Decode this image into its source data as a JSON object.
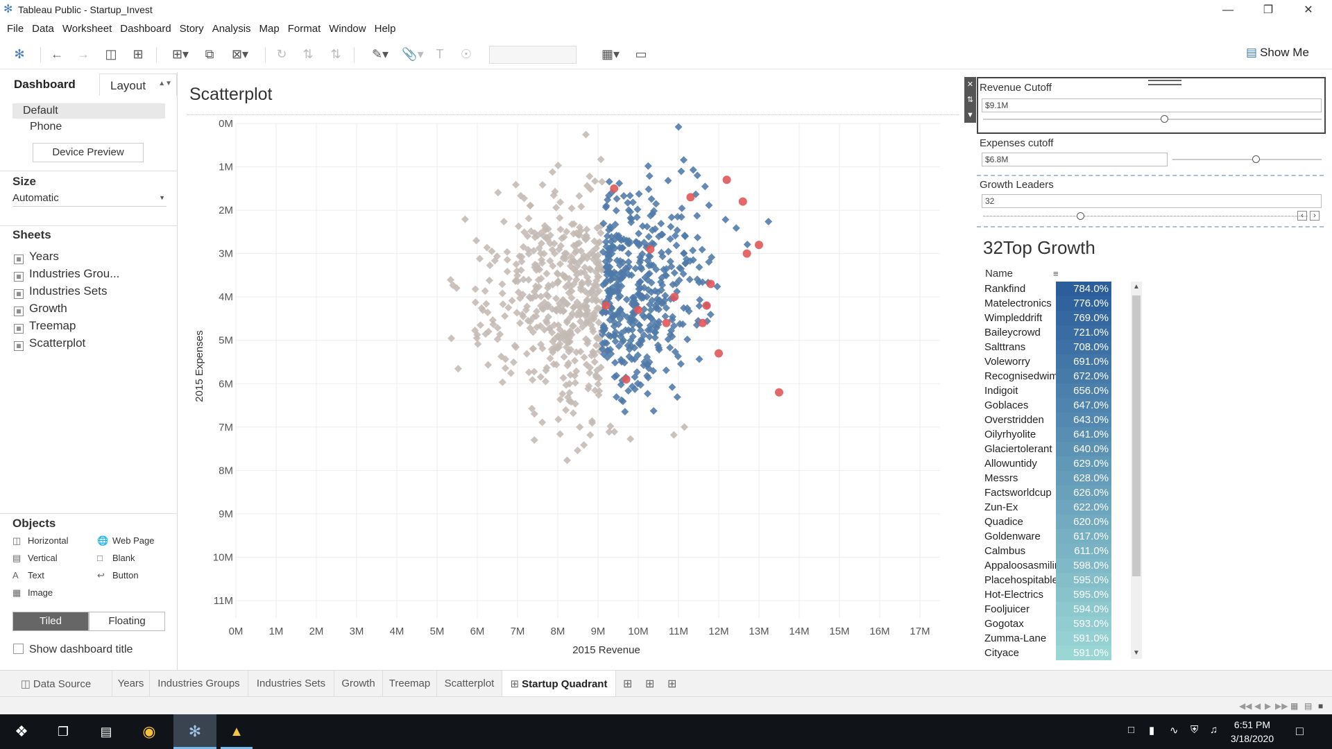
{
  "window": {
    "title": "Tableau Public - Startup_Invest"
  },
  "menu": [
    "File",
    "Data",
    "Worksheet",
    "Dashboard",
    "Story",
    "Analysis",
    "Map",
    "Format",
    "Window",
    "Help"
  ],
  "toolbar": {
    "show_me": "Show Me"
  },
  "left_panel": {
    "tab_dashboard": "Dashboard",
    "tab_layout": "Layout",
    "device_default": "Default",
    "device_phone": "Phone",
    "device_preview": "Device Preview",
    "size_heading": "Size",
    "size_value": "Automatic",
    "sheets_heading": "Sheets",
    "sheets": [
      "Years",
      "Industries Grou...",
      "Industries Sets",
      "Growth",
      "Treemap",
      "Scatterplot"
    ],
    "objects_heading": "Objects",
    "objects": [
      "Horizontal",
      "Web Page",
      "Vertical",
      "Blank",
      "Text",
      "Button",
      "Image"
    ],
    "tiled": "Tiled",
    "floating": "Floating",
    "show_title": "Show dashboard title"
  },
  "scatter": {
    "title": "Scatterplot"
  },
  "chart_data": {
    "type": "scatter",
    "xlabel": "2015 Revenue",
    "ylabel": "2015 Expenses",
    "xlim": [
      0,
      17.5
    ],
    "ylim": [
      0,
      11.4
    ],
    "y_reversed": true,
    "x_ticks": [
      "0M",
      "1M",
      "2M",
      "3M",
      "4M",
      "5M",
      "6M",
      "7M",
      "8M",
      "9M",
      "10M",
      "11M",
      "12M",
      "13M",
      "14M",
      "15M",
      "16M",
      "17M"
    ],
    "y_ticks": [
      "0M",
      "1M",
      "2M",
      "3M",
      "4M",
      "5M",
      "6M",
      "7M",
      "8M",
      "9M",
      "10M",
      "11M"
    ],
    "revenue_cutoff": 9.1,
    "expense_cutoff": 6.8,
    "colors": {
      "below": "#c4bab4",
      "above": "#4e79a7",
      "growth": "#e15759"
    },
    "growth_points": [
      [
        9.4,
        1.5
      ],
      [
        9.2,
        4.2
      ],
      [
        9.7,
        5.9
      ],
      [
        10.0,
        4.3
      ],
      [
        10.3,
        2.9
      ],
      [
        10.7,
        4.6
      ],
      [
        10.9,
        4.0
      ],
      [
        11.3,
        1.7
      ],
      [
        11.7,
        4.2
      ],
      [
        11.8,
        3.7
      ],
      [
        11.6,
        4.6
      ],
      [
        12.0,
        5.3
      ],
      [
        12.2,
        1.3
      ],
      [
        12.6,
        1.8
      ],
      [
        12.7,
        3.0
      ],
      [
        13.0,
        2.8
      ],
      [
        13.5,
        6.2
      ]
    ]
  },
  "filters": {
    "revenue": {
      "label": "Revenue Cutoff",
      "value": "$9.1M"
    },
    "expenses": {
      "label": "Expenses cutoff",
      "value": "$6.8M"
    },
    "leaders": {
      "label": "Growth Leaders",
      "value": "32"
    }
  },
  "growth_table": {
    "title": "32Top Growth",
    "col_name": "Name",
    "rows": [
      {
        "name": "Rankfind",
        "value": "784.0%"
      },
      {
        "name": "Matelectronics",
        "value": "776.0%"
      },
      {
        "name": "Wimpleddrift",
        "value": "769.0%"
      },
      {
        "name": "Baileycrowd",
        "value": "721.0%"
      },
      {
        "name": "Salttrans",
        "value": "708.0%"
      },
      {
        "name": "Voleworry",
        "value": "691.0%"
      },
      {
        "name": "Recognisedwimp",
        "value": "672.0%"
      },
      {
        "name": "Indigoit",
        "value": "656.0%"
      },
      {
        "name": "Goblaces",
        "value": "647.0%"
      },
      {
        "name": "Overstridden",
        "value": "643.0%"
      },
      {
        "name": "Oilyrhyolite",
        "value": "641.0%"
      },
      {
        "name": "Glaciertolerant",
        "value": "640.0%"
      },
      {
        "name": "Allowuntidy",
        "value": "629.0%"
      },
      {
        "name": "Messrs",
        "value": "628.0%"
      },
      {
        "name": "Factsworldcup",
        "value": "626.0%"
      },
      {
        "name": "Zun-Ex",
        "value": "622.0%"
      },
      {
        "name": "Quadice",
        "value": "620.0%"
      },
      {
        "name": "Goldenware",
        "value": "617.0%"
      },
      {
        "name": "Calmbus",
        "value": "611.0%"
      },
      {
        "name": "Appaloosasmiling",
        "value": "598.0%"
      },
      {
        "name": "Placehospitable",
        "value": "595.0%"
      },
      {
        "name": "Hot-Electrics",
        "value": "595.0%"
      },
      {
        "name": "Fooljuicer",
        "value": "594.0%"
      },
      {
        "name": "Gogotax",
        "value": "593.0%"
      },
      {
        "name": "Zumma-Lane",
        "value": "591.0%"
      },
      {
        "name": "Cityace",
        "value": "591.0%"
      }
    ]
  },
  "sheet_tabs": [
    "Data Source",
    "Years",
    "Industries Groups",
    "Industries Sets",
    "Growth",
    "Treemap",
    "Scatterplot",
    "Startup Quadrant"
  ],
  "taskbar": {
    "time": "6:51 PM",
    "date": "3/18/2020"
  }
}
